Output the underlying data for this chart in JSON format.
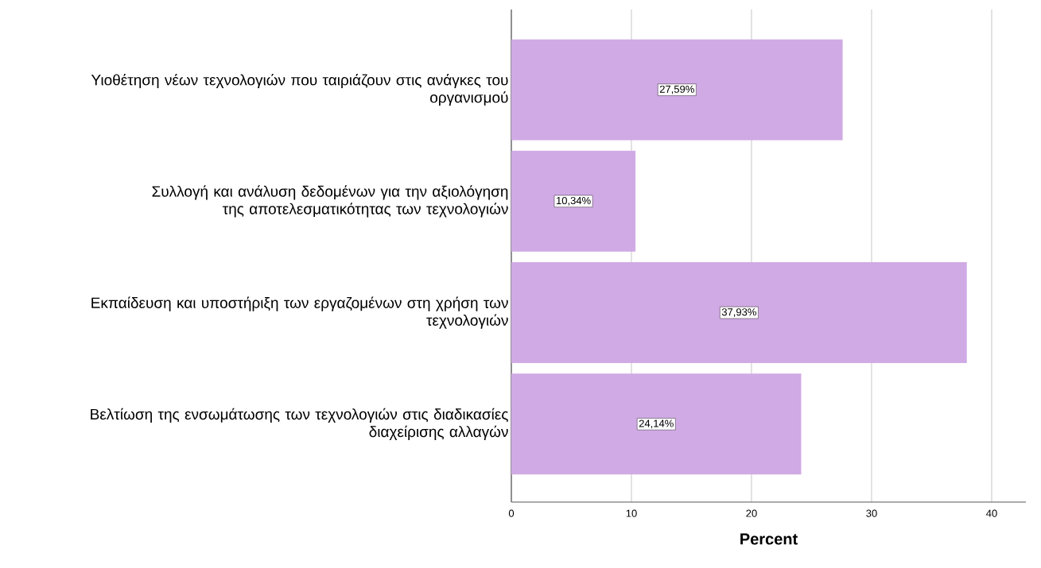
{
  "chart_data": {
    "type": "bar",
    "orientation": "horizontal",
    "xlabel": "Percent",
    "categories": [
      "Υιοθέτηση νέων τεχνολογιών που ταιριάζουν στις ανάγκες του οργανισμού",
      "Συλλογή και ανάλυση δεδομένων για την αξιολόγηση της αποτελεσματικότητας των τεχνολογιών",
      "Εκπαίδευση και υποστήριξη των εργαζομένων στη χρήση των τεχνολογιών",
      "Βελτίωση της ενσωμάτωσης των τεχνολογιών στις διαδικασίες διαχείρισης αλλαγών"
    ],
    "values": [
      27.59,
      10.34,
      37.93,
      24.14
    ],
    "value_labels": [
      "27,59%",
      "10,34%",
      "37,93%",
      "24,14%"
    ],
    "color": "#d0aae4",
    "xlim": [
      0,
      42.85
    ],
    "xticks": [
      0,
      10,
      20,
      30,
      40
    ],
    "grid": "x"
  }
}
